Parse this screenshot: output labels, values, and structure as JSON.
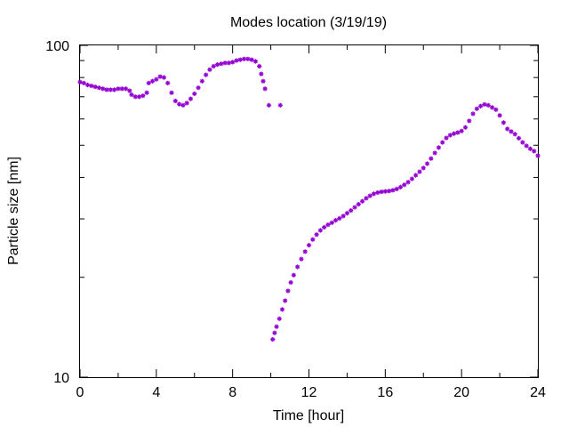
{
  "chart_data": {
    "type": "scatter",
    "title": "Modes location (3/19/19)",
    "xlabel": "Time [hour]",
    "ylabel": "Particle size [nm]",
    "xlim": [
      0,
      24
    ],
    "ylim": [
      10,
      100
    ],
    "yscale": "log",
    "grid": false,
    "marker_color": "#9400d3",
    "marker": "asterisk",
    "x_ticks": [
      0,
      4,
      8,
      12,
      16,
      20,
      24
    ],
    "x_tick_labels": [
      "0",
      "4",
      "8",
      "12",
      "16",
      "20",
      "24"
    ],
    "y_tick_labels": [
      "10",
      "100"
    ],
    "series": [
      {
        "points": [
          [
            0.0,
            77.5
          ],
          [
            0.2,
            77.0
          ],
          [
            0.4,
            76.0
          ],
          [
            0.6,
            75.5
          ],
          [
            0.8,
            75.0
          ],
          [
            1.0,
            74.5
          ],
          [
            1.2,
            74.0
          ],
          [
            1.4,
            73.5
          ],
          [
            1.6,
            73.5
          ],
          [
            1.8,
            73.5
          ],
          [
            2.0,
            74.0
          ],
          [
            2.2,
            74.0
          ],
          [
            2.4,
            74.0
          ],
          [
            2.6,
            73.0
          ],
          [
            2.7,
            71.0
          ],
          [
            2.9,
            70.0
          ],
          [
            3.1,
            70.0
          ],
          [
            3.3,
            70.5
          ],
          [
            3.5,
            72.0
          ],
          [
            3.6,
            77.0
          ],
          [
            3.8,
            78.0
          ],
          [
            4.0,
            79.0
          ],
          [
            4.2,
            80.5
          ],
          [
            4.4,
            80.0
          ],
          [
            4.6,
            77.0
          ],
          [
            4.8,
            72.0
          ],
          [
            5.0,
            68.0
          ],
          [
            5.2,
            66.5
          ],
          [
            5.4,
            66.0
          ],
          [
            5.6,
            67.0
          ],
          [
            5.8,
            69.0
          ],
          [
            6.0,
            71.5
          ],
          [
            6.2,
            74.5
          ],
          [
            6.4,
            78.0
          ],
          [
            6.6,
            81.5
          ],
          [
            6.8,
            84.5
          ],
          [
            7.0,
            86.5
          ],
          [
            7.2,
            87.5
          ],
          [
            7.4,
            88.0
          ],
          [
            7.6,
            88.5
          ],
          [
            7.8,
            88.5
          ],
          [
            8.0,
            89.0
          ],
          [
            8.2,
            90.0
          ],
          [
            8.4,
            90.5
          ],
          [
            8.6,
            91.0
          ],
          [
            8.8,
            91.0
          ],
          [
            9.0,
            90.5
          ],
          [
            9.2,
            89.5
          ],
          [
            9.4,
            86.5
          ],
          [
            9.5,
            82.0
          ],
          [
            9.6,
            78.0
          ],
          [
            9.7,
            74.0
          ],
          [
            9.9,
            66.0
          ],
          [
            10.5,
            66.0
          ],
          [
            10.1,
            13.0
          ],
          [
            10.2,
            13.6
          ],
          [
            10.3,
            14.2
          ],
          [
            10.45,
            15.0
          ],
          [
            10.6,
            16.0
          ],
          [
            10.75,
            17.0
          ],
          [
            10.9,
            18.2
          ],
          [
            11.05,
            19.3
          ],
          [
            11.2,
            20.3
          ],
          [
            11.4,
            21.5
          ],
          [
            11.6,
            22.7
          ],
          [
            11.8,
            23.9
          ],
          [
            12.0,
            25.0
          ],
          [
            12.2,
            26.0
          ],
          [
            12.4,
            26.9
          ],
          [
            12.6,
            27.7
          ],
          [
            12.8,
            28.3
          ],
          [
            13.0,
            28.8
          ],
          [
            13.2,
            29.2
          ],
          [
            13.4,
            29.7
          ],
          [
            13.6,
            30.1
          ],
          [
            13.8,
            30.6
          ],
          [
            14.0,
            31.2
          ],
          [
            14.2,
            31.8
          ],
          [
            14.4,
            32.5
          ],
          [
            14.6,
            33.2
          ],
          [
            14.8,
            33.9
          ],
          [
            15.0,
            34.6
          ],
          [
            15.2,
            35.2
          ],
          [
            15.4,
            35.7
          ],
          [
            15.6,
            36.0
          ],
          [
            15.8,
            36.2
          ],
          [
            16.0,
            36.3
          ],
          [
            16.2,
            36.4
          ],
          [
            16.4,
            36.6
          ],
          [
            16.6,
            36.9
          ],
          [
            16.8,
            37.4
          ],
          [
            17.0,
            38.0
          ],
          [
            17.2,
            38.7
          ],
          [
            17.4,
            39.6
          ],
          [
            17.6,
            40.6
          ],
          [
            17.8,
            41.6
          ],
          [
            18.0,
            42.7
          ],
          [
            18.2,
            44.0
          ],
          [
            18.4,
            45.6
          ],
          [
            18.6,
            47.4
          ],
          [
            18.8,
            49.2
          ],
          [
            19.0,
            51.0
          ],
          [
            19.2,
            52.6
          ],
          [
            19.4,
            53.6
          ],
          [
            19.6,
            54.2
          ],
          [
            19.8,
            54.6
          ],
          [
            20.0,
            55.2
          ],
          [
            20.2,
            56.6
          ],
          [
            20.4,
            59.2
          ],
          [
            20.6,
            62.2
          ],
          [
            20.8,
            64.4
          ],
          [
            21.0,
            65.6
          ],
          [
            21.2,
            66.4
          ],
          [
            21.4,
            66.0
          ],
          [
            21.6,
            65.0
          ],
          [
            21.8,
            64.0
          ],
          [
            22.0,
            61.5
          ],
          [
            22.2,
            58.5
          ],
          [
            22.4,
            56.0
          ],
          [
            22.6,
            55.0
          ],
          [
            22.8,
            54.0
          ],
          [
            23.0,
            52.5
          ],
          [
            23.2,
            51.0
          ],
          [
            23.4,
            49.8
          ],
          [
            23.6,
            48.8
          ],
          [
            23.8,
            48.0
          ],
          [
            24.0,
            46.5
          ]
        ]
      }
    ]
  }
}
